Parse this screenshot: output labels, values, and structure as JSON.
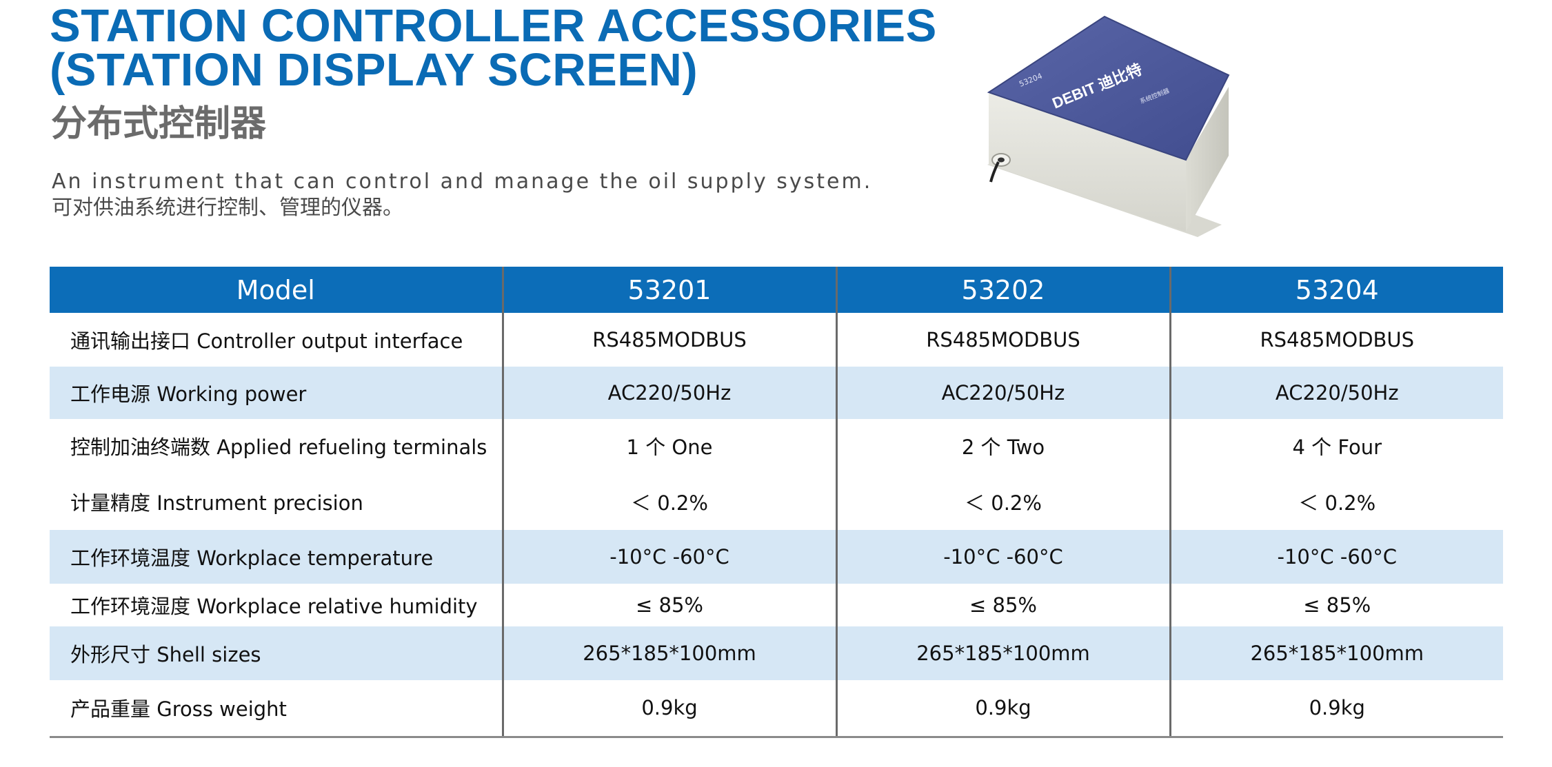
{
  "header": {
    "title_line1": "STATION CONTROLLER ACCESSORIES",
    "title_line2": "(STATION DISPLAY SCREEN)",
    "subtitle_cn": "分布式控制器",
    "description_en": "An instrument that can control and manage the oil supply system.",
    "description_cn": "可对供油系统进行控制、管理的仪器。"
  },
  "product_image": {
    "model_label": "53204",
    "brand_logo": "DEBIT 迪比特",
    "small_label": "系统控制器"
  },
  "table": {
    "header": [
      "Model",
      "53201",
      "53202",
      "53204"
    ],
    "rows": [
      {
        "label": "通讯输出接口  Controller output interface",
        "values": [
          "RS485MODBUS",
          "RS485MODBUS",
          "RS485MODBUS"
        ]
      },
      {
        "label": "工作电源  Working power",
        "values": [
          "AC220/50Hz",
          "AC220/50Hz",
          "AC220/50Hz"
        ]
      },
      {
        "label": "控制加油终端数  Applied refueling terminals",
        "values": [
          "1 个 One",
          "2 个 Two",
          "4 个 Four"
        ]
      },
      {
        "label": "计量精度  Instrument precision",
        "values": [
          "＜ 0.2%",
          "＜ 0.2%",
          "＜ 0.2%"
        ]
      },
      {
        "label": "工作环境温度  Workplace temperature",
        "values": [
          "-10°C -60°C",
          "-10°C -60°C",
          "-10°C -60°C"
        ]
      },
      {
        "label": "工作环境湿度  Workplace relative humidity",
        "values": [
          "≤ 85%",
          "≤ 85%",
          "≤ 85%"
        ]
      },
      {
        "label": "外形尺寸  Shell sizes",
        "values": [
          "265*185*100mm",
          "265*185*100mm",
          "265*185*100mm"
        ]
      },
      {
        "label": "产品重量  Gross weight",
        "values": [
          "0.9kg",
          "0.9kg",
          "0.9kg"
        ]
      }
    ]
  },
  "colors": {
    "accent_blue": "#0a6bb5",
    "header_bg": "#0c6db8",
    "row_shade": "#d6e7f5",
    "lid_blue": "#4d5a9e"
  }
}
